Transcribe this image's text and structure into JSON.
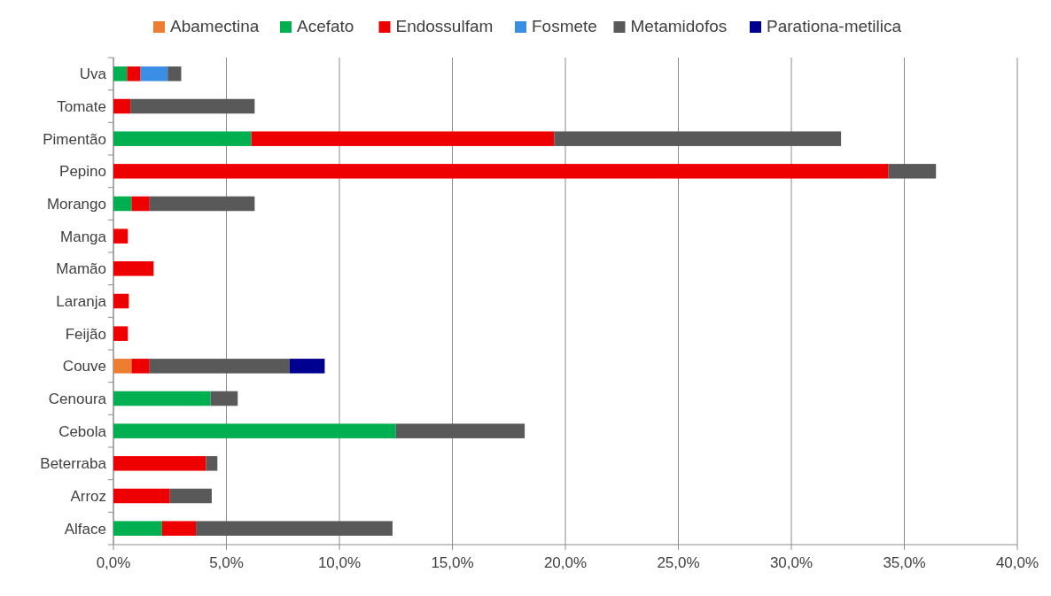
{
  "chart_data": {
    "type": "bar",
    "orientation": "horizontal",
    "stacked": true,
    "legend": "top",
    "grid": "x",
    "categories": [
      "Uva",
      "Tomate",
      "Pimentão",
      "Pepino",
      "Morango",
      "Manga",
      "Mamão",
      "Laranja",
      "Feijão",
      "Couve",
      "Cenoura",
      "Cebola",
      "Beterraba",
      "Arroz",
      "Alface"
    ],
    "series": [
      {
        "name": "Abamectina",
        "color": "#ed7d31",
        "values": [
          null,
          null,
          null,
          null,
          null,
          null,
          null,
          null,
          null,
          0.8,
          null,
          null,
          null,
          null,
          null
        ]
      },
      {
        "name": "Acefato",
        "color": "#00b050",
        "values": [
          0.6,
          null,
          6.1,
          null,
          0.8,
          null,
          null,
          null,
          null,
          null,
          4.3,
          12.5,
          null,
          null,
          2.15
        ]
      },
      {
        "name": "Endossulfam",
        "color": "#ee0000",
        "values": [
          0.6,
          0.75,
          13.4,
          34.3,
          0.8,
          0.64,
          1.78,
          0.68,
          0.64,
          0.8,
          null,
          null,
          4.1,
          2.5,
          1.5
        ]
      },
      {
        "name": "Fosmete",
        "color": "#3a8ee6",
        "values": [
          1.2,
          null,
          null,
          null,
          null,
          null,
          null,
          null,
          null,
          null,
          null,
          null,
          null,
          null,
          null
        ]
      },
      {
        "name": "Metamidofos",
        "color": "#595959",
        "values": [
          0.6,
          5.5,
          12.7,
          2.1,
          4.65,
          null,
          null,
          null,
          null,
          6.2,
          1.2,
          5.7,
          0.5,
          1.85,
          8.7
        ]
      },
      {
        "name": "Parationa-metilica",
        "color": "#000090",
        "values": [
          null,
          null,
          null,
          null,
          null,
          null,
          null,
          null,
          null,
          1.55,
          null,
          null,
          null,
          null,
          null
        ]
      }
    ],
    "xlim": [
      0,
      40
    ],
    "xticks": [
      {
        "value": 0,
        "label": "0,0%"
      },
      {
        "value": 5,
        "label": "5,0%"
      },
      {
        "value": 10,
        "label": "10,0%"
      },
      {
        "value": 15,
        "label": "15,0%"
      },
      {
        "value": 20,
        "label": "20,0%"
      },
      {
        "value": 25,
        "label": "25,0%"
      },
      {
        "value": 30,
        "label": "30,0%"
      },
      {
        "value": 35,
        "label": "35,0%"
      },
      {
        "value": 40,
        "label": "40,0%"
      }
    ]
  }
}
